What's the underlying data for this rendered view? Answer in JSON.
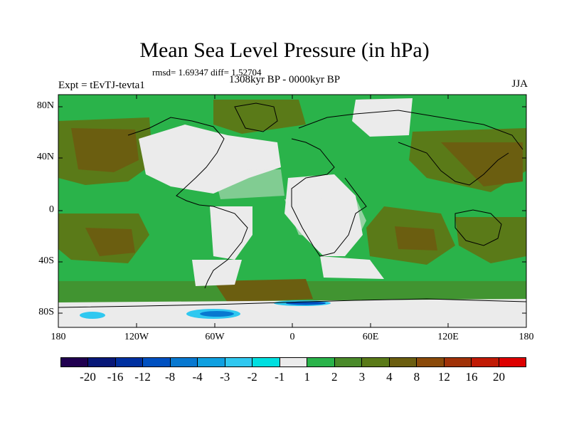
{
  "title": "Mean Sea Level Pressure (in hPa)",
  "stats": "rmsd= 1.69347 diff= 1.52704",
  "experiment": "Expt = tEvTJ-tevta1",
  "period": "1308kyr BP - 0000kyr BP",
  "season": "JJA",
  "y_axis_labels": [
    "80N",
    "40N",
    "0",
    "40S",
    "80S"
  ],
  "x_axis_labels": [
    "180",
    "120W",
    "60W",
    "0",
    "60E",
    "120E",
    "180"
  ],
  "colorbar": {
    "colors": [
      "#200050",
      "#081878",
      "#0030a0",
      "#0050c0",
      "#0878d0",
      "#10a0e0",
      "#30c8f0",
      "#00dfe0",
      "#ebebeb",
      "#2ab34a",
      "#4a8a2a",
      "#5a7a18",
      "#6b5e10",
      "#8a4a0a",
      "#a03208",
      "#c01a04",
      "#dd0000"
    ],
    "labels": [
      "-20",
      "-16",
      "-12",
      "-8",
      "-4",
      "-3",
      "-2",
      "-1",
      "1",
      "2",
      "3",
      "4",
      "8",
      "12",
      "16",
      "20"
    ]
  },
  "map_colors": {
    "green": "#2ab34a",
    "dark": "#4a8a2a",
    "brown": "#6b5e10",
    "light": "#ebebeb",
    "blue": "#0878d0",
    "cyan": "#30c8f0"
  }
}
